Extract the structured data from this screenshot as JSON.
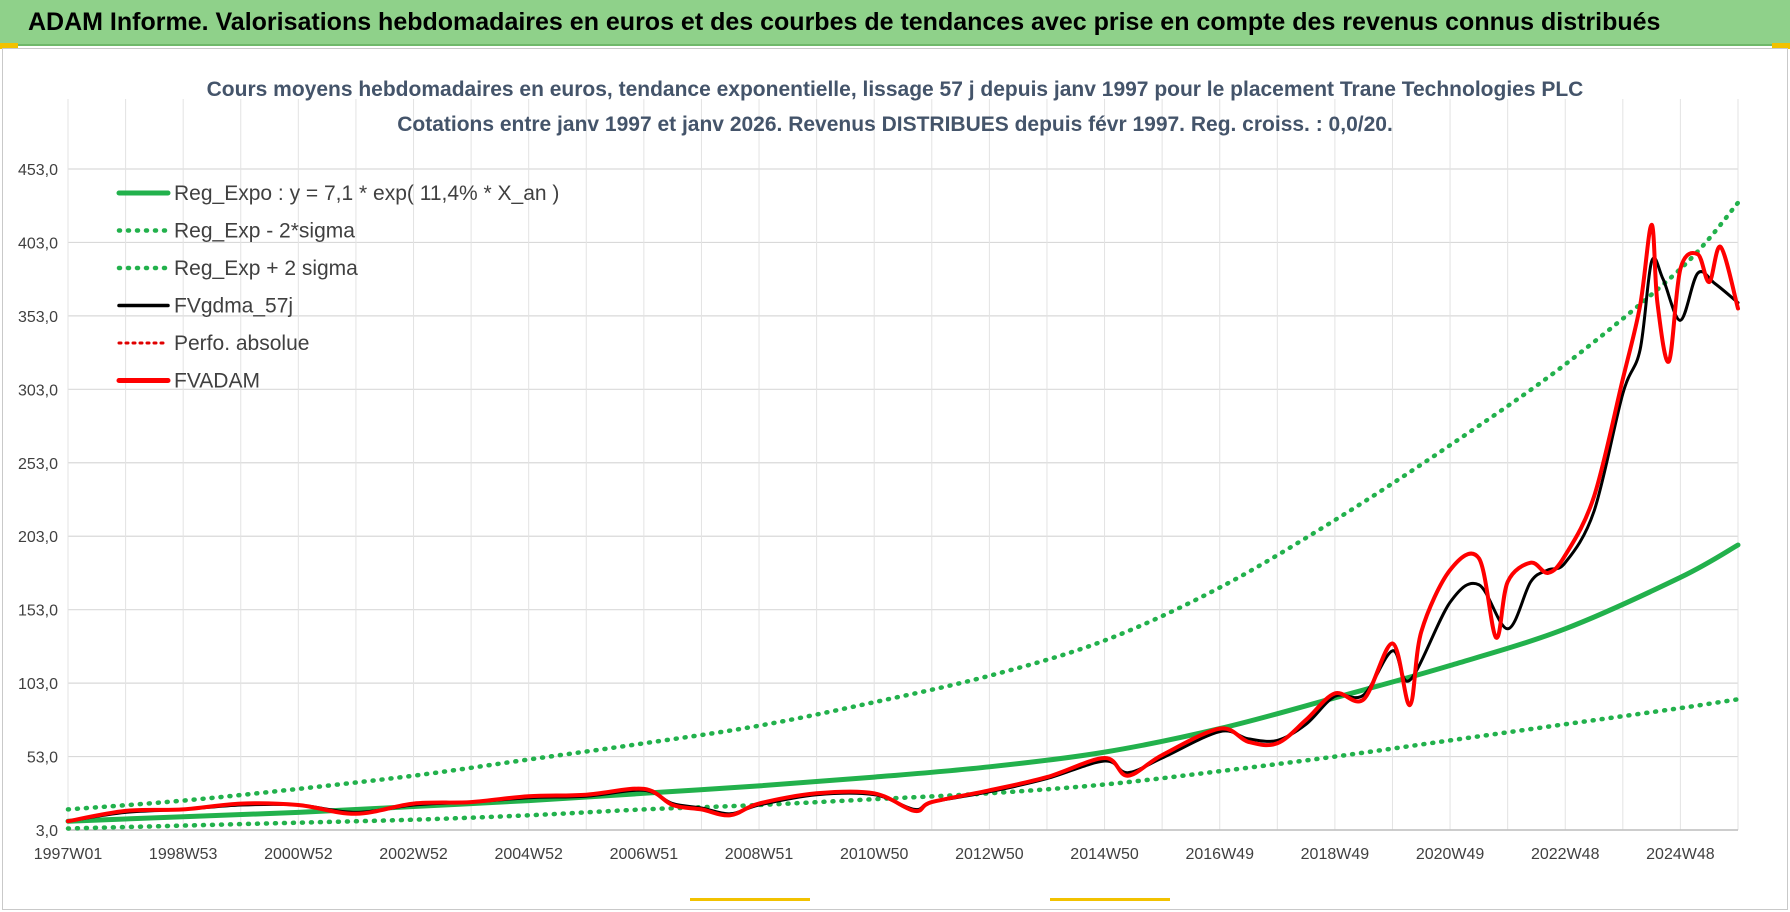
{
  "header": {
    "title": "ADAM Informe. Valorisations hebdomadaires en euros et des courbes de tendances avec prise en compte des revenus connus distribués"
  },
  "chart_data": {
    "type": "line",
    "title": "Cours moyens hebdomadaires en euros, tendance exponentielle, lissage 57 j depuis janv 1997 pour le placement Trane Technologies PLC",
    "subtitle": "Cotations entre janv 1997 et janv 2026. Revenus DISTRIBUES depuis févr 1997. Reg. croiss. : 0,0/20.",
    "xlabel": "",
    "ylabel": "",
    "x_range": [
      1997.0,
      2026.0
    ],
    "ylim": [
      3,
      453
    ],
    "y_ticks": [
      "3,0",
      "53,0",
      "103,0",
      "153,0",
      "203,0",
      "253,0",
      "303,0",
      "353,0",
      "403,0",
      "453,0"
    ],
    "y_tick_values": [
      3,
      53,
      103,
      153,
      203,
      253,
      303,
      353,
      403,
      453
    ],
    "x_ticks": [
      "1997W01",
      "1998W53",
      "2000W52",
      "2002W52",
      "2004W52",
      "2006W51",
      "2008W51",
      "2010W50",
      "2012W50",
      "2014W50",
      "2016W49",
      "2018W49",
      "2020W49",
      "2022W48",
      "2024W48"
    ],
    "x_tick_values": [
      1997.0,
      1999.0,
      2001.0,
      2003.0,
      2005.0,
      2007.0,
      2009.0,
      2011.0,
      2013.0,
      2015.0,
      2017.0,
      2019.0,
      2021.0,
      2023.0,
      2025.0
    ],
    "legend_position": "top-left",
    "legend": [
      {
        "name": "Reg_Expo : y = 7,1 * exp( 11,4% *  X_an )",
        "color": "#22b14c",
        "style": "solid-thick"
      },
      {
        "name": "Reg_Exp - 2*sigma",
        "color": "#22b14c",
        "style": "dotted"
      },
      {
        "name": "Reg_Exp + 2 sigma",
        "color": "#22b14c",
        "style": "dotted"
      },
      {
        "name": "FVgdma_57j",
        "color": "#000000",
        "style": "solid"
      },
      {
        "name": "Perfo. absolue",
        "color": "#e00000",
        "style": "dotted"
      },
      {
        "name": "FVADAM",
        "color": "#ff0000",
        "style": "solid-thick"
      }
    ],
    "series": [
      {
        "name": "Reg_Expo",
        "x": [
          1997,
          1999,
          2001,
          2003,
          2005,
          2007,
          2009,
          2011,
          2013,
          2015,
          2017,
          2019,
          2021,
          2023,
          2025,
          2026
        ],
        "values": [
          9,
          12,
          15,
          19,
          23,
          28,
          33,
          39,
          46,
          56,
          72,
          93,
          115,
          140,
          175,
          197
        ]
      },
      {
        "name": "Reg_Exp - 2*sigma",
        "x": [
          1997,
          1999,
          2001,
          2003,
          2005,
          2007,
          2009,
          2011,
          2013,
          2015,
          2017,
          2019,
          2021,
          2023,
          2025,
          2026
        ],
        "values": [
          4,
          6,
          8,
          10,
          13,
          17,
          20,
          24,
          28,
          34,
          43,
          53,
          64,
          75,
          86,
          92
        ]
      },
      {
        "name": "Reg_Exp + 2 sigma",
        "x": [
          1997,
          1999,
          2001,
          2003,
          2005,
          2007,
          2009,
          2011,
          2013,
          2015,
          2017,
          2019,
          2021,
          2023,
          2025,
          2026
        ],
        "values": [
          17,
          23,
          31,
          40,
          51,
          62,
          74,
          90,
          108,
          132,
          168,
          214,
          265,
          320,
          385,
          430
        ]
      },
      {
        "name": "FVgdma_57j",
        "x": [
          1997,
          1998,
          1999,
          2000,
          2001,
          2002,
          2003,
          2004,
          2005,
          2006,
          2007,
          2007.5,
          2008,
          2008.5,
          2009,
          2010,
          2011,
          2011.7,
          2012,
          2013,
          2014,
          2015,
          2015.4,
          2016,
          2017,
          2017.5,
          2018,
          2018.5,
          2019,
          2019.5,
          2020,
          2020.3,
          2021,
          2021.5,
          2022,
          2022.4,
          2022.7,
          2023,
          2023.5,
          2024,
          2024.3,
          2024.5,
          2024.7,
          2025,
          2025.3,
          2025.6,
          2026
        ],
        "values": [
          9,
          15,
          17,
          20,
          20,
          15,
          20,
          22,
          25,
          26,
          30,
          21,
          18,
          14,
          20,
          27,
          27,
          17,
          22,
          29,
          38,
          50,
          42,
          52,
          70,
          65,
          64,
          75,
          94,
          95,
          125,
          105,
          158,
          170,
          140,
          172,
          180,
          185,
          220,
          300,
          330,
          390,
          378,
          350,
          382,
          375,
          362
        ]
      },
      {
        "name": "FVADAM",
        "x": [
          1997,
          1998,
          1999,
          2000,
          2001,
          2002,
          2003,
          2004,
          2005,
          2006,
          2007,
          2007.5,
          2008,
          2008.5,
          2009,
          2010,
          2011,
          2011.7,
          2012,
          2013,
          2014,
          2015,
          2015.4,
          2016,
          2017,
          2017.5,
          2018,
          2018.5,
          2019,
          2019.5,
          2020,
          2020.3,
          2020.5,
          2021,
          2021.5,
          2021.8,
          2022,
          2022.4,
          2022.7,
          2023,
          2023.5,
          2024,
          2024.3,
          2024.5,
          2024.6,
          2024.8,
          2025,
          2025.3,
          2025.5,
          2025.7,
          2026
        ],
        "values": [
          9,
          16,
          17,
          21,
          20,
          14,
          21,
          22,
          26,
          27,
          31,
          20,
          17,
          13,
          21,
          28,
          28,
          16,
          22,
          30,
          39,
          52,
          40,
          54,
          72,
          63,
          62,
          78,
          96,
          92,
          130,
          88,
          138,
          180,
          188,
          134,
          172,
          185,
          178,
          190,
          230,
          310,
          360,
          415,
          362,
          322,
          385,
          395,
          376,
          400,
          358
        ]
      }
    ]
  }
}
